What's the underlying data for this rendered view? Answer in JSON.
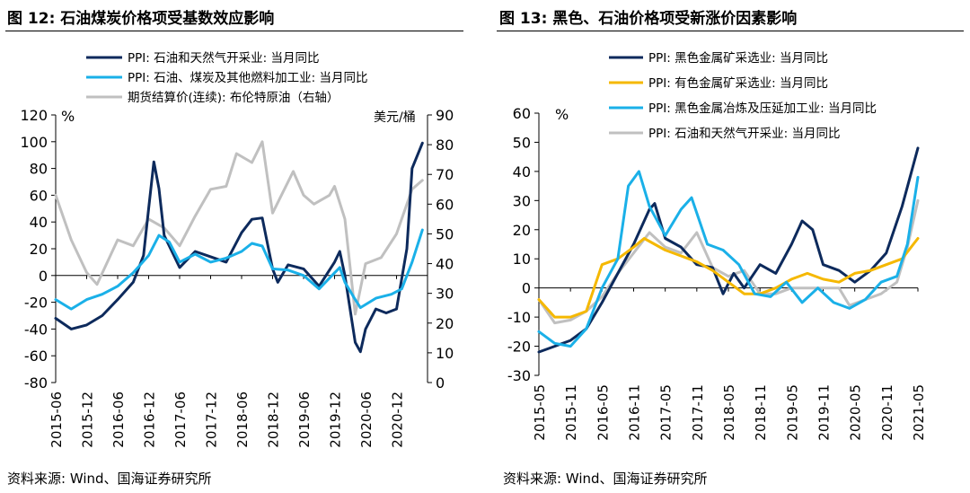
{
  "panels": [
    {
      "title": "图 12:  石油煤炭价格项受基数效应影响",
      "source": "资料来源:  Wind、国海证券研究所"
    },
    {
      "title": "图 13:  黑色、石油价格项受新涨价因素影响",
      "source": "资料来源:  Wind、国海证券研究所"
    }
  ],
  "chart_data": [
    {
      "type": "line",
      "left_axis_unit": "%",
      "right_axis_unit": "美元/桶",
      "ylim": [
        -80,
        120
      ],
      "yticks": [
        -80,
        -60,
        -40,
        -20,
        0,
        20,
        40,
        60,
        80,
        100,
        120
      ],
      "y2lim": [
        0,
        90
      ],
      "y2ticks": [
        0,
        10,
        20,
        30,
        40,
        50,
        60,
        70,
        80,
        90
      ],
      "xlim": [
        "2015-06",
        "2021-06"
      ],
      "xtick_labels": [
        "2015-06",
        "2015-12",
        "2016-06",
        "2016-12",
        "2017-06",
        "2017-12",
        "2018-06",
        "2018-12",
        "2019-06",
        "2019-12",
        "2020-06",
        "2020-12"
      ],
      "legend_position": "top",
      "grid": false,
      "series": [
        {
          "name": "PPI: 石油和天然气开采业: 当月同比",
          "color": "#0d2a5c",
          "axis": "left",
          "points": [
            [
              "2015-06",
              -32
            ],
            [
              "2015-09",
              -40
            ],
            [
              "2015-12",
              -37
            ],
            [
              "2016-03",
              -30
            ],
            [
              "2016-06",
              -18
            ],
            [
              "2016-09",
              -5
            ],
            [
              "2016-11",
              15
            ],
            [
              "2016-12",
              50
            ],
            [
              "2017-01",
              85
            ],
            [
              "2017-02",
              65
            ],
            [
              "2017-03",
              30
            ],
            [
              "2017-06",
              6
            ],
            [
              "2017-09",
              18
            ],
            [
              "2017-12",
              14
            ],
            [
              "2018-03",
              10
            ],
            [
              "2018-06",
              32
            ],
            [
              "2018-08",
              42
            ],
            [
              "2018-10",
              43
            ],
            [
              "2018-12",
              5
            ],
            [
              "2019-01",
              -5
            ],
            [
              "2019-03",
              8
            ],
            [
              "2019-06",
              5
            ],
            [
              "2019-09",
              -8
            ],
            [
              "2019-12",
              10
            ],
            [
              "2020-01",
              18
            ],
            [
              "2020-02",
              0
            ],
            [
              "2020-04",
              -50
            ],
            [
              "2020-05",
              -57
            ],
            [
              "2020-06",
              -40
            ],
            [
              "2020-08",
              -25
            ],
            [
              "2020-10",
              -28
            ],
            [
              "2020-12",
              -25
            ],
            [
              "2021-02",
              20
            ],
            [
              "2021-03",
              80
            ],
            [
              "2021-05",
              99
            ]
          ]
        },
        {
          "name": "PPI: 石油、煤炭及其他燃料加工业: 当月同比",
          "color": "#1ab0e8",
          "axis": "left",
          "points": [
            [
              "2015-06",
              -18
            ],
            [
              "2015-09",
              -25
            ],
            [
              "2015-12",
              -18
            ],
            [
              "2016-03",
              -14
            ],
            [
              "2016-06",
              -8
            ],
            [
              "2016-09",
              2
            ],
            [
              "2016-12",
              15
            ],
            [
              "2017-02",
              30
            ],
            [
              "2017-04",
              25
            ],
            [
              "2017-06",
              10
            ],
            [
              "2017-09",
              16
            ],
            [
              "2017-12",
              10
            ],
            [
              "2018-03",
              13
            ],
            [
              "2018-06",
              18
            ],
            [
              "2018-08",
              24
            ],
            [
              "2018-10",
              22
            ],
            [
              "2018-12",
              5
            ],
            [
              "2019-03",
              4
            ],
            [
              "2019-06",
              0
            ],
            [
              "2019-09",
              -10
            ],
            [
              "2019-12",
              2
            ],
            [
              "2020-01",
              6
            ],
            [
              "2020-02",
              -5
            ],
            [
              "2020-04",
              -18
            ],
            [
              "2020-05",
              -24
            ],
            [
              "2020-08",
              -17
            ],
            [
              "2020-11",
              -14
            ],
            [
              "2021-01",
              -10
            ],
            [
              "2021-03",
              10
            ],
            [
              "2021-05",
              34
            ]
          ]
        },
        {
          "name": "期货结算价(连续): 布伦特原油（右轴）",
          "color": "#c0c0c0",
          "axis": "right",
          "points": [
            [
              "2015-06",
              63
            ],
            [
              "2015-09",
              48
            ],
            [
              "2015-12",
              37
            ],
            [
              "2016-02",
              33
            ],
            [
              "2016-06",
              48
            ],
            [
              "2016-09",
              46
            ],
            [
              "2016-12",
              55
            ],
            [
              "2017-03",
              52
            ],
            [
              "2017-06",
              46
            ],
            [
              "2017-09",
              56
            ],
            [
              "2017-12",
              65
            ],
            [
              "2018-03",
              66
            ],
            [
              "2018-05",
              77
            ],
            [
              "2018-08",
              74
            ],
            [
              "2018-10",
              81
            ],
            [
              "2018-12",
              57
            ],
            [
              "2019-02",
              64
            ],
            [
              "2019-04",
              71
            ],
            [
              "2019-06",
              63
            ],
            [
              "2019-08",
              60
            ],
            [
              "2019-11",
              63
            ],
            [
              "2019-12",
              66
            ],
            [
              "2020-02",
              55
            ],
            [
              "2020-04",
              23
            ],
            [
              "2020-06",
              40
            ],
            [
              "2020-09",
              42
            ],
            [
              "2020-12",
              50
            ],
            [
              "2021-03",
              65
            ],
            [
              "2021-05",
              68
            ]
          ]
        }
      ]
    },
    {
      "type": "line",
      "left_axis_unit": "%",
      "ylim": [
        -30,
        60
      ],
      "yticks": [
        -30,
        -20,
        -10,
        0,
        10,
        20,
        30,
        40,
        50,
        60
      ],
      "xlim": [
        "2015-05",
        "2021-05"
      ],
      "xtick_labels": [
        "2015-05",
        "2015-11",
        "2016-05",
        "2016-11",
        "2017-05",
        "2017-11",
        "2018-05",
        "2018-11",
        "2019-05",
        "2019-11",
        "2020-05",
        "2020-11",
        "2021-05"
      ],
      "legend_position": "top",
      "grid": false,
      "series": [
        {
          "name": "PPI: 黑色金属矿采选业: 当月同比",
          "color": "#0d2a5c",
          "points": [
            [
              "2015-05",
              -22
            ],
            [
              "2015-08",
              -20
            ],
            [
              "2015-11",
              -18
            ],
            [
              "2016-02",
              -14
            ],
            [
              "2016-05",
              -5
            ],
            [
              "2016-08",
              5
            ],
            [
              "2016-11",
              15
            ],
            [
              "2017-02",
              27
            ],
            [
              "2017-03",
              29
            ],
            [
              "2017-05",
              17
            ],
            [
              "2017-08",
              14
            ],
            [
              "2017-11",
              8
            ],
            [
              "2018-02",
              7
            ],
            [
              "2018-04",
              -2
            ],
            [
              "2018-06",
              5
            ],
            [
              "2018-08",
              0
            ],
            [
              "2018-11",
              8
            ],
            [
              "2019-02",
              5
            ],
            [
              "2019-05",
              15
            ],
            [
              "2019-07",
              23
            ],
            [
              "2019-09",
              20
            ],
            [
              "2019-11",
              8
            ],
            [
              "2020-02",
              6
            ],
            [
              "2020-05",
              2
            ],
            [
              "2020-08",
              6
            ],
            [
              "2020-11",
              12
            ],
            [
              "2021-02",
              28
            ],
            [
              "2021-05",
              48
            ]
          ]
        },
        {
          "name": "PPI: 有色金属矿采选业: 当月同比",
          "color": "#f5b800",
          "points": [
            [
              "2015-05",
              -4
            ],
            [
              "2015-08",
              -10
            ],
            [
              "2015-11",
              -10
            ],
            [
              "2016-02",
              -8
            ],
            [
              "2016-05",
              8
            ],
            [
              "2016-08",
              10
            ],
            [
              "2016-11",
              14
            ],
            [
              "2017-01",
              17
            ],
            [
              "2017-05",
              13
            ],
            [
              "2017-08",
              11
            ],
            [
              "2017-11",
              9
            ],
            [
              "2018-02",
              6
            ],
            [
              "2018-05",
              2
            ],
            [
              "2018-08",
              -2
            ],
            [
              "2018-11",
              -2
            ],
            [
              "2019-02",
              0
            ],
            [
              "2019-05",
              3
            ],
            [
              "2019-08",
              5
            ],
            [
              "2019-11",
              3
            ],
            [
              "2020-02",
              2
            ],
            [
              "2020-05",
              5
            ],
            [
              "2020-08",
              6
            ],
            [
              "2020-11",
              8
            ],
            [
              "2021-02",
              10
            ],
            [
              "2021-05",
              17
            ]
          ]
        },
        {
          "name": "PPI: 黑色金属冶炼及压延加工业: 当月同比",
          "color": "#1ab0e8",
          "points": [
            [
              "2015-05",
              -15
            ],
            [
              "2015-08",
              -19
            ],
            [
              "2015-11",
              -20
            ],
            [
              "2016-02",
              -14
            ],
            [
              "2016-05",
              0
            ],
            [
              "2016-08",
              10
            ],
            [
              "2016-10",
              35
            ],
            [
              "2016-12",
              40
            ],
            [
              "2017-02",
              28
            ],
            [
              "2017-05",
              18
            ],
            [
              "2017-08",
              27
            ],
            [
              "2017-10",
              31
            ],
            [
              "2018-01",
              15
            ],
            [
              "2018-04",
              13
            ],
            [
              "2018-07",
              8
            ],
            [
              "2018-10",
              -2
            ],
            [
              "2019-01",
              -3
            ],
            [
              "2019-04",
              2
            ],
            [
              "2019-07",
              -5
            ],
            [
              "2019-10",
              0
            ],
            [
              "2020-01",
              -5
            ],
            [
              "2020-04",
              -7
            ],
            [
              "2020-07",
              -4
            ],
            [
              "2020-10",
              2
            ],
            [
              "2021-01",
              4
            ],
            [
              "2021-03",
              15
            ],
            [
              "2021-05",
              38
            ]
          ]
        },
        {
          "name": "PPI: 石油和天然气开采业: 当月同比",
          "color": "#c0c0c0",
          "points": [
            [
              "2015-05",
              -4
            ],
            [
              "2015-08",
              -12
            ],
            [
              "2015-11",
              -11
            ],
            [
              "2016-02",
              -8
            ],
            [
              "2016-05",
              -3
            ],
            [
              "2016-08",
              5
            ],
            [
              "2016-11",
              12
            ],
            [
              "2017-02",
              19
            ],
            [
              "2017-05",
              14
            ],
            [
              "2017-08",
              12
            ],
            [
              "2017-11",
              19
            ],
            [
              "2018-02",
              7
            ],
            [
              "2018-05",
              4
            ],
            [
              "2018-08",
              6
            ],
            [
              "2018-11",
              -2
            ],
            [
              "2019-02",
              -2
            ],
            [
              "2019-05",
              0
            ],
            [
              "2019-08",
              0
            ],
            [
              "2019-11",
              0
            ],
            [
              "2020-02",
              0
            ],
            [
              "2020-04",
              -6
            ],
            [
              "2020-07",
              -4
            ],
            [
              "2020-10",
              -2
            ],
            [
              "2021-01",
              2
            ],
            [
              "2021-03",
              14
            ],
            [
              "2021-05",
              30
            ]
          ]
        }
      ]
    }
  ]
}
